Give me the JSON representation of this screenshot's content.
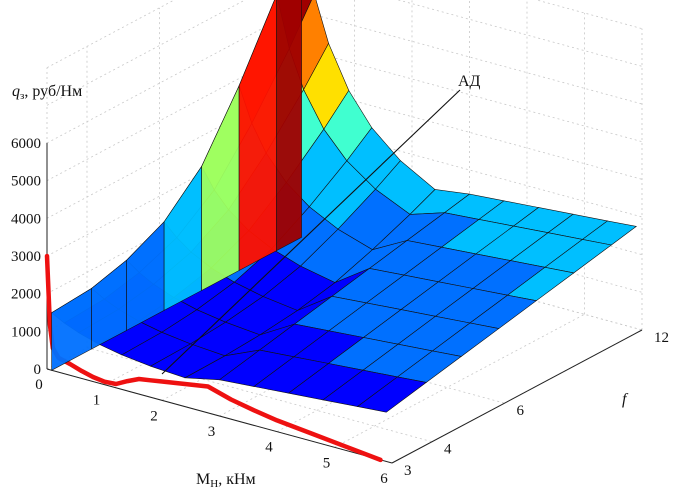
{
  "chart_data": {
    "type": "surface3d",
    "z_axis": {
      "label_italic": "q",
      "label_sub": "з",
      "label_rest": ", руб/Нм",
      "ticks": [
        "0",
        "1000",
        "2000",
        "3000",
        "4000",
        "5000",
        "6000"
      ],
      "range": [
        0,
        6000
      ]
    },
    "x_axis": {
      "label": "М",
      "label_sub": "Н",
      "label_rest": ", кНм",
      "ticks": [
        "0",
        "1",
        "2",
        "3",
        "4",
        "5",
        "6"
      ],
      "range": [
        0,
        6
      ]
    },
    "y_axis": {
      "label": "f",
      "ticks": [
        "3",
        "4",
        "6",
        "12"
      ],
      "tick_values": [
        3,
        4,
        6,
        12
      ]
    },
    "annotation": {
      "text": "АД",
      "points_to": {
        "x": 2.0,
        "y": 3.0,
        "z": 700
      }
    },
    "red_curve": {
      "color": "#ee1111",
      "x": [
        0.0,
        0.05,
        0.1,
        0.2,
        0.4,
        0.6,
        0.8,
        1.0,
        1.2,
        1.4,
        1.6,
        1.8,
        2.0,
        2.4,
        2.8,
        3.2,
        3.6,
        4.0,
        4.6,
        5.2,
        5.8
      ],
      "z": [
        3000,
        1200,
        600,
        380,
        300,
        200,
        120,
        80,
        100,
        260,
        400,
        450,
        500,
        600,
        700,
        520,
        400,
        300,
        200,
        100,
        0
      ]
    },
    "colormap": [
      "#00007f",
      "#0000ff",
      "#0070ff",
      "#00bfff",
      "#40ffd0",
      "#9fff60",
      "#ffe000",
      "#ff8000",
      "#ff1000",
      "#a00000"
    ],
    "grid": true
  }
}
